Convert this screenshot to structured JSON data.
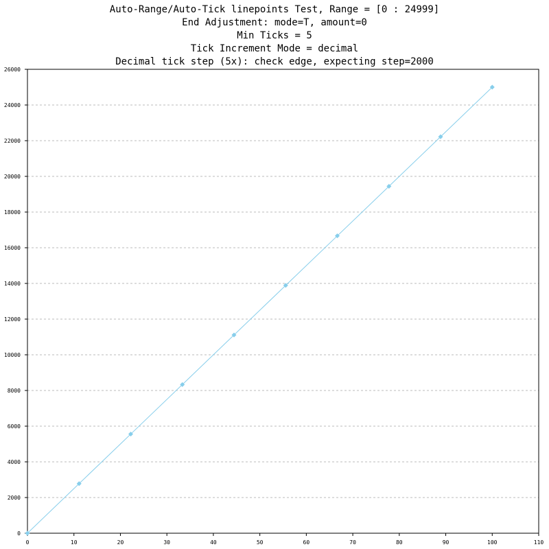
{
  "chart_data": {
    "type": "line",
    "title": [
      "Auto-Range/Auto-Tick linepoints Test, Range = [0 : 24999]",
      "End Adjustment: mode=T, amount=0",
      "Min Ticks = 5",
      "Tick Increment Mode = decimal",
      "Decimal tick step (5x): check edge, expecting step=2000"
    ],
    "x": [
      0,
      11.11,
      22.22,
      33.33,
      44.44,
      55.56,
      66.67,
      77.78,
      88.89,
      100
    ],
    "series": [
      {
        "name": "linepoints",
        "color": "#87ceeb",
        "values": [
          0,
          2777.7,
          5555.3,
          8333,
          11110.7,
          13888.3,
          16666,
          19443.7,
          22221.3,
          24999
        ]
      }
    ],
    "xlim": [
      0,
      110
    ],
    "xticks": [
      0,
      10,
      20,
      30,
      40,
      50,
      60,
      70,
      80,
      90,
      100,
      110
    ],
    "ylim": [
      0,
      26000
    ],
    "yticks": [
      0,
      2000,
      4000,
      6000,
      8000,
      10000,
      12000,
      14000,
      16000,
      18000,
      20000,
      22000,
      24000,
      26000
    ],
    "grid": true
  }
}
